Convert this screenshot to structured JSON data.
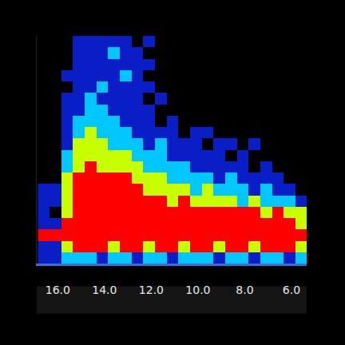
{
  "chart_data": {
    "type": "heatmap",
    "xlim": [
      16.9,
      5.35
    ],
    "xticks": [
      {
        "value": 16,
        "label": "16.0"
      },
      {
        "value": 14,
        "label": "14.0"
      },
      {
        "value": 12,
        "label": "12.0"
      },
      {
        "value": 10,
        "label": "10.0"
      },
      {
        "value": 8,
        "label": "8.0"
      },
      {
        "value": 6,
        "label": "6.0"
      }
    ],
    "ylim": [
      0,
      10
    ],
    "yticks": [],
    "tick_labels": "x",
    "grid": false,
    "zlim": [
      0,
      4
    ],
    "colors": [
      "#000000",
      "#0a1ec8",
      "#00c8ff",
      "#c8ff00",
      "#ff0000"
    ],
    "x": [
      16.6,
      16.1,
      15.6,
      15.1,
      14.6,
      14.1,
      13.6,
      13.1,
      12.6,
      12.1,
      11.6,
      11.1,
      10.6,
      10.1,
      9.6,
      9.1,
      8.6,
      8.1,
      7.6,
      7.1,
      6.6,
      6.1,
      5.6
    ],
    "y": [
      0.25,
      0.75,
      1.25,
      1.75,
      2.25,
      2.75,
      3.25,
      3.75,
      4.25,
      4.75,
      5.25,
      5.75,
      6.25,
      6.75,
      7.25,
      7.75,
      8.25,
      8.75,
      9.25,
      9.75
    ],
    "z": [
      [
        1,
        1,
        2,
        2,
        2,
        1,
        2,
        2,
        1,
        2,
        2,
        1,
        2,
        2,
        2,
        1,
        2,
        2,
        1,
        2,
        2,
        1,
        2
      ],
      [
        1,
        1,
        3,
        4,
        4,
        4,
        3,
        4,
        4,
        3,
        4,
        4,
        3,
        4,
        4,
        3,
        4,
        4,
        3,
        4,
        4,
        4,
        3
      ],
      [
        4,
        4,
        4,
        4,
        4,
        4,
        4,
        4,
        4,
        4,
        4,
        4,
        4,
        4,
        4,
        4,
        4,
        4,
        4,
        4,
        4,
        4,
        4
      ],
      [
        1,
        1,
        4,
        4,
        4,
        4,
        4,
        4,
        4,
        4,
        4,
        4,
        4,
        4,
        4,
        4,
        4,
        4,
        4,
        4,
        4,
        4,
        3
      ],
      [
        1,
        0,
        3,
        4,
        4,
        4,
        4,
        4,
        4,
        4,
        4,
        4,
        4,
        4,
        4,
        4,
        4,
        4,
        4,
        3,
        4,
        3,
        3
      ],
      [
        1,
        1,
        3,
        4,
        4,
        4,
        4,
        4,
        4,
        4,
        4,
        3,
        4,
        3,
        3,
        3,
        3,
        2,
        3,
        2,
        2,
        2,
        1
      ],
      [
        1,
        1,
        3,
        4,
        4,
        4,
        4,
        4,
        4,
        3,
        3,
        3,
        3,
        2,
        3,
        2,
        2,
        2,
        1,
        2,
        1,
        1,
        0
      ],
      [
        0,
        0,
        3,
        4,
        4,
        4,
        4,
        4,
        3,
        3,
        3,
        2,
        2,
        2,
        2,
        1,
        2,
        1,
        1,
        1,
        1,
        0,
        0
      ],
      [
        0,
        0,
        2,
        3,
        4,
        3,
        3,
        3,
        3,
        2,
        2,
        2,
        2,
        1,
        1,
        1,
        1,
        1,
        0,
        1,
        0,
        0,
        0
      ],
      [
        0,
        0,
        2,
        3,
        3,
        3,
        3,
        3,
        2,
        2,
        2,
        1,
        1,
        1,
        1,
        1,
        0,
        1,
        0,
        0,
        0,
        0,
        0
      ],
      [
        0,
        0,
        1,
        3,
        3,
        3,
        2,
        2,
        2,
        1,
        2,
        1,
        1,
        1,
        0,
        1,
        1,
        0,
        1,
        0,
        0,
        0,
        0
      ],
      [
        0,
        0,
        1,
        2,
        3,
        2,
        2,
        2,
        1,
        1,
        1,
        1,
        0,
        1,
        1,
        0,
        0,
        0,
        0,
        0,
        0,
        0,
        0
      ],
      [
        0,
        0,
        1,
        2,
        2,
        2,
        2,
        1,
        1,
        1,
        0,
        1,
        0,
        0,
        0,
        0,
        0,
        0,
        0,
        0,
        0,
        0,
        0
      ],
      [
        0,
        0,
        1,
        1,
        2,
        2,
        1,
        1,
        1,
        1,
        0,
        0,
        0,
        0,
        0,
        0,
        0,
        0,
        0,
        0,
        0,
        0,
        0
      ],
      [
        0,
        0,
        1,
        1,
        2,
        1,
        1,
        1,
        1,
        0,
        1,
        0,
        0,
        0,
        0,
        0,
        0,
        0,
        0,
        0,
        0,
        0,
        0
      ],
      [
        0,
        0,
        0,
        1,
        1,
        2,
        1,
        1,
        1,
        1,
        0,
        0,
        0,
        0,
        0,
        0,
        0,
        0,
        0,
        0,
        0,
        0,
        0
      ],
      [
        0,
        0,
        1,
        1,
        1,
        1,
        1,
        2,
        1,
        0,
        0,
        0,
        0,
        0,
        0,
        0,
        0,
        0,
        0,
        0,
        0,
        0,
        0
      ],
      [
        0,
        0,
        0,
        1,
        1,
        1,
        1,
        1,
        1,
        1,
        0,
        0,
        0,
        0,
        0,
        0,
        0,
        0,
        0,
        0,
        0,
        0,
        0
      ],
      [
        0,
        0,
        0,
        1,
        1,
        1,
        2,
        1,
        1,
        0,
        0,
        0,
        0,
        0,
        0,
        0,
        0,
        0,
        0,
        0,
        0,
        0,
        0
      ],
      [
        0,
        0,
        0,
        1,
        1,
        1,
        1,
        1,
        0,
        1,
        0,
        0,
        0,
        0,
        0,
        0,
        0,
        0,
        0,
        0,
        0,
        0,
        0
      ]
    ]
  }
}
